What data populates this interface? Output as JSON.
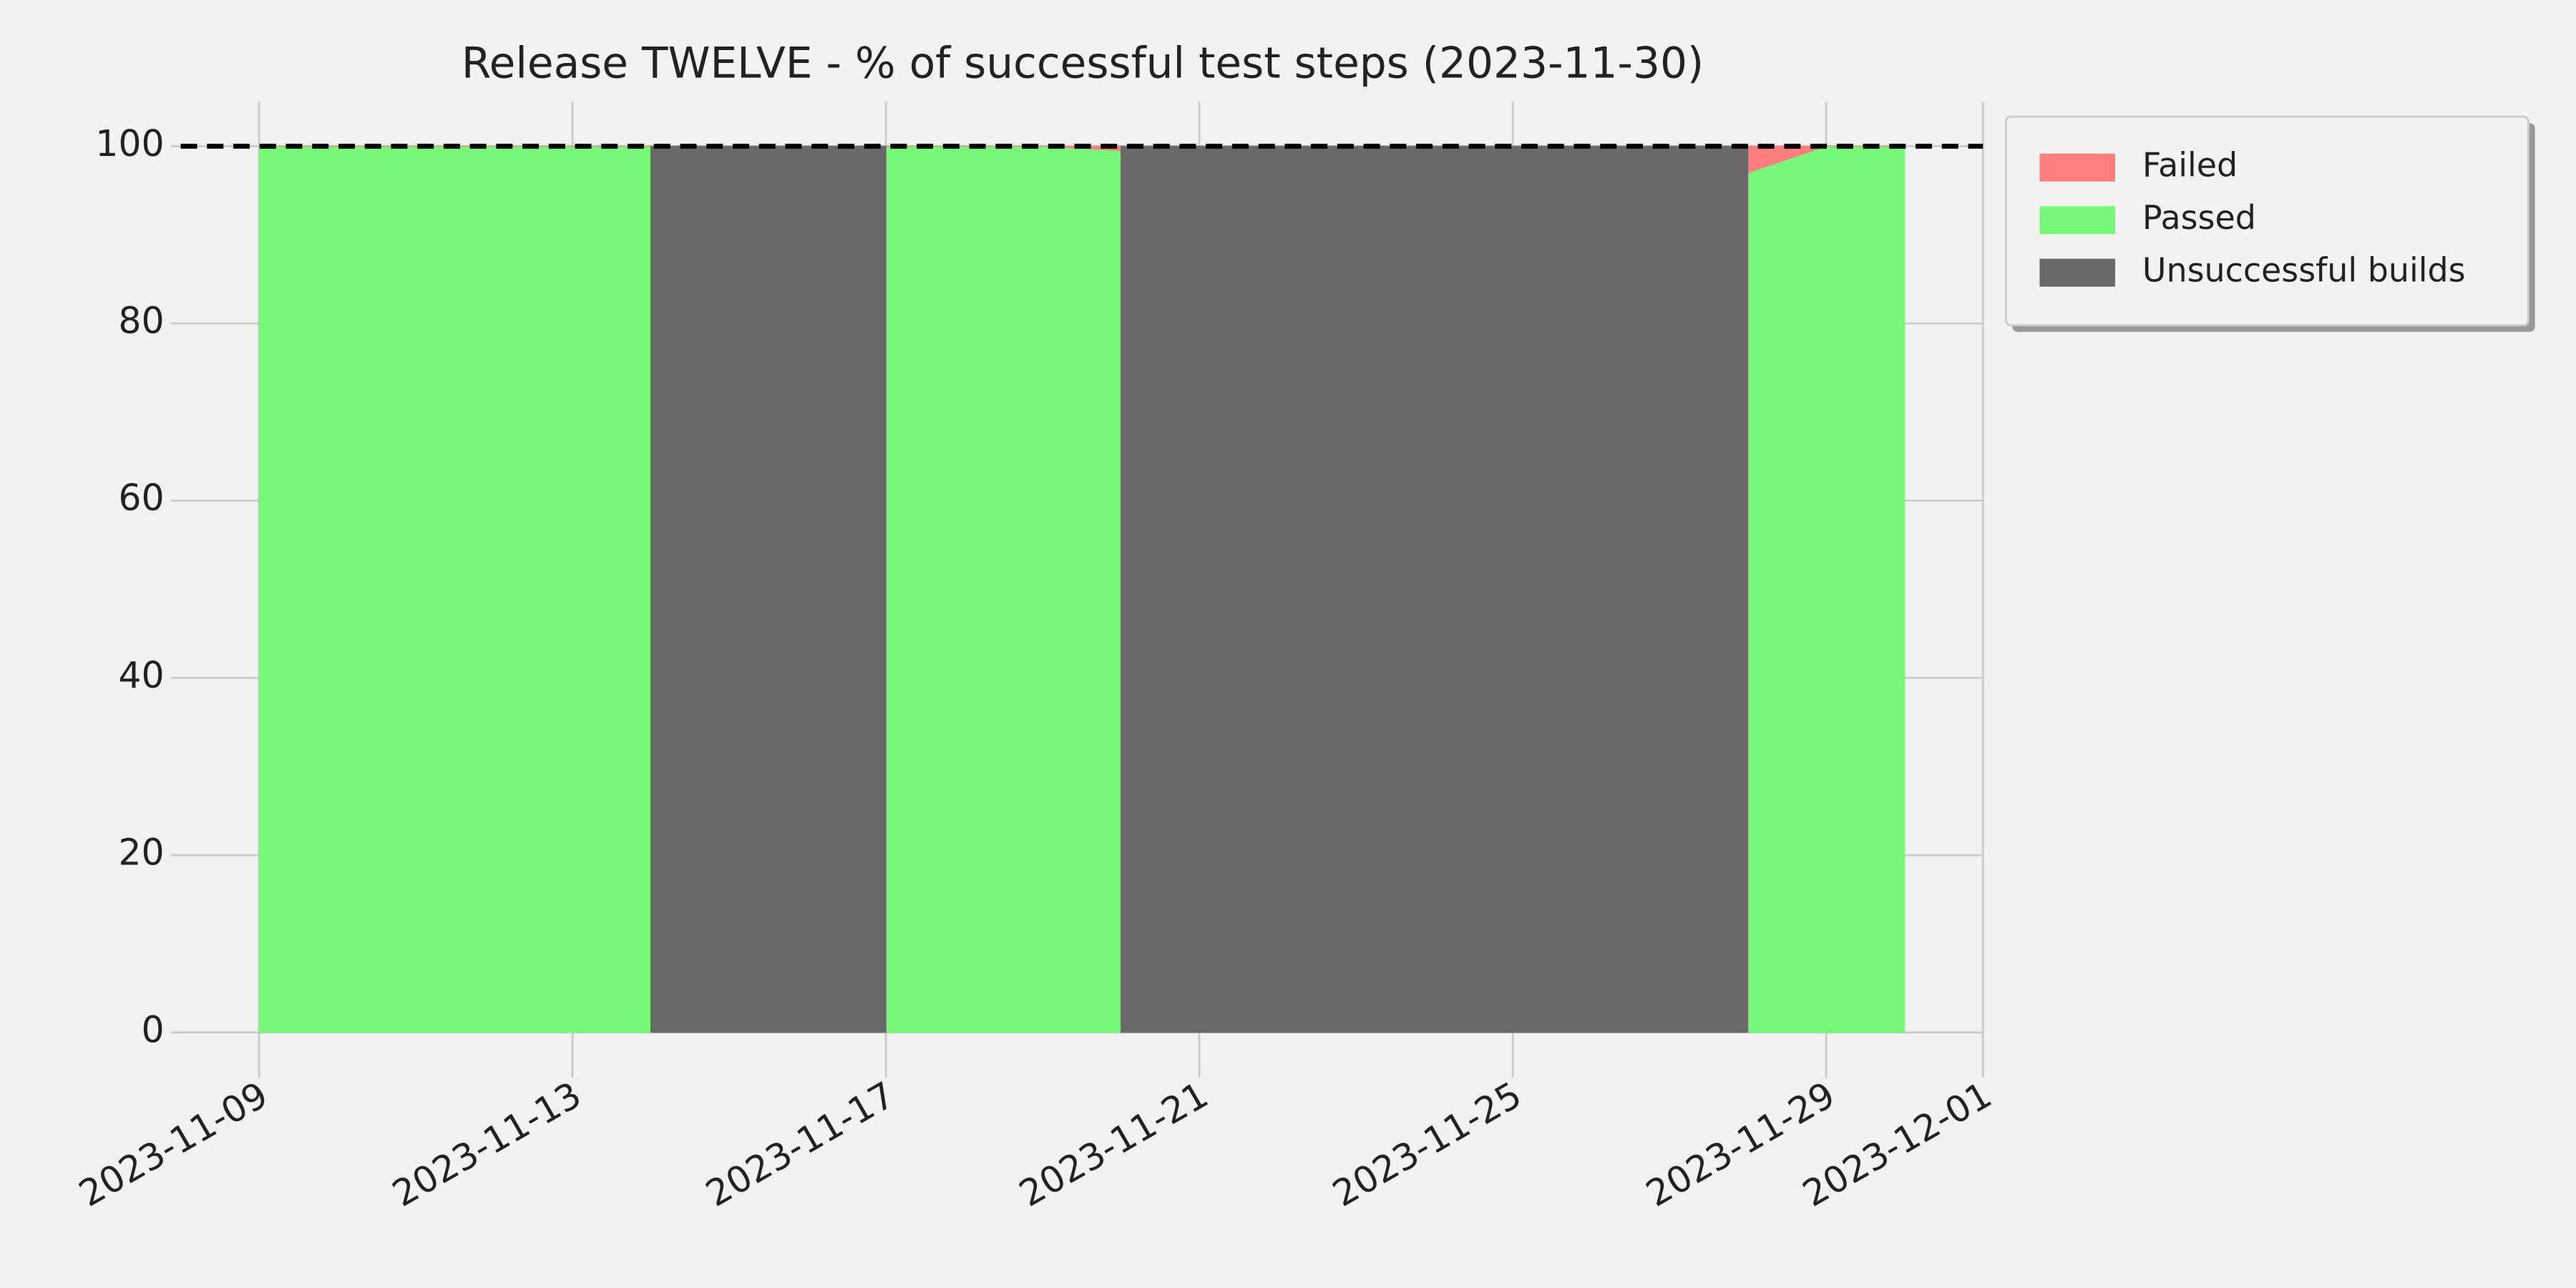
{
  "chart_data": {
    "type": "stacked_area",
    "title": "Release TWELVE - % of successful test steps (2023-11-30)",
    "x": [
      "2023-11-09",
      "2023-11-10",
      "2023-11-11",
      "2023-11-12",
      "2023-11-13",
      "2023-11-14",
      "2023-11-15",
      "2023-11-16",
      "2023-11-17",
      "2023-11-18",
      "2023-11-19",
      "2023-11-20",
      "2023-11-21",
      "2023-11-22",
      "2023-11-23",
      "2023-11-24",
      "2023-11-25",
      "2023-11-26",
      "2023-11-27",
      "2023-11-28",
      "2023-11-29",
      "2023-11-30"
    ],
    "series": [
      {
        "name": "Failed",
        "color": "#ff7f7f",
        "stack": true,
        "values": [
          0,
          0,
          0,
          0,
          0,
          0,
          null,
          null,
          0,
          0,
          0,
          0.5,
          null,
          null,
          null,
          null,
          null,
          null,
          null,
          3,
          0,
          0
        ]
      },
      {
        "name": "Passed",
        "color": "#78f878",
        "stack": true,
        "values": [
          100,
          100,
          100,
          100,
          100,
          100,
          null,
          null,
          100,
          100,
          100,
          99.5,
          null,
          null,
          null,
          null,
          null,
          null,
          null,
          97,
          100,
          100
        ]
      },
      {
        "name": "Unsuccessful builds",
        "color": "#696969",
        "stack": false,
        "values": [
          null,
          null,
          null,
          null,
          null,
          100,
          100,
          100,
          100,
          null,
          null,
          100,
          100,
          100,
          100,
          100,
          100,
          100,
          100,
          100,
          null,
          null
        ]
      }
    ],
    "reference_line": 100,
    "xlim": [
      "2023-11-08",
      "2023-12-01"
    ],
    "xticks": [
      "2023-11-09",
      "2023-11-13",
      "2023-11-17",
      "2023-11-21",
      "2023-11-25",
      "2023-11-29",
      "2023-12-01"
    ],
    "ylim": [
      -4,
      105
    ],
    "yticks": [
      0,
      20,
      40,
      60,
      80,
      100
    ],
    "grid": true,
    "legend": "upper right outside"
  }
}
